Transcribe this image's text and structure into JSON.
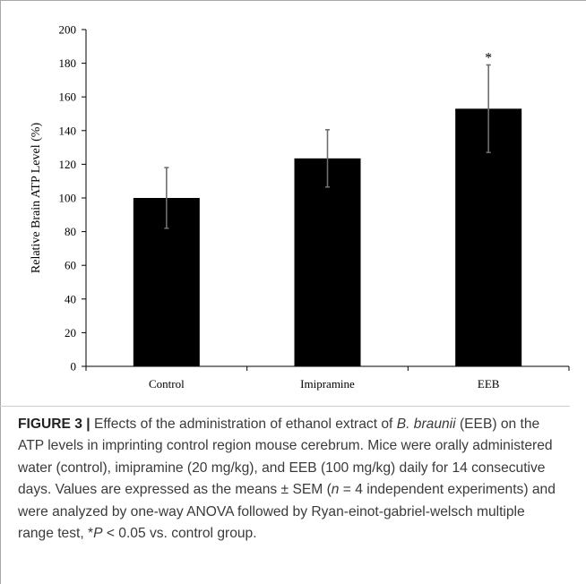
{
  "chart_data": {
    "type": "bar",
    "categories": [
      "Control",
      "Imipramine",
      "EEB"
    ],
    "values": [
      100,
      123.5,
      153
    ],
    "errors": [
      18,
      17,
      26
    ],
    "annotations": [
      "",
      "",
      "*"
    ],
    "ylabel": "Relative Brain ATP Level (%)",
    "xlabel": "",
    "ylim": [
      0,
      200
    ],
    "yticks": [
      0,
      20,
      40,
      60,
      80,
      100,
      120,
      140,
      160,
      180,
      200
    ],
    "grid": false,
    "bar_color": "#000000"
  },
  "caption": {
    "label": "FIGURE 3 |",
    "t1": " Effects of the administration of ethanol extract of ",
    "species": "B. braunii",
    "t2": " (EEB) on the ATP levels in imprinting control region mouse cerebrum. Mice were orally administered water (control), imipramine (20 mg/kg), and EEB (100 mg/kg) daily for 14 consecutive days. Values are expressed as the means ± SEM (",
    "n": "n",
    "t3": " = 4 independent experiments) and were analyzed by one-way ANOVA followed by Ryan-einot-gabriel-welsch multiple range test, *",
    "p": "P",
    "t4": " < 0.05 vs. control group."
  }
}
